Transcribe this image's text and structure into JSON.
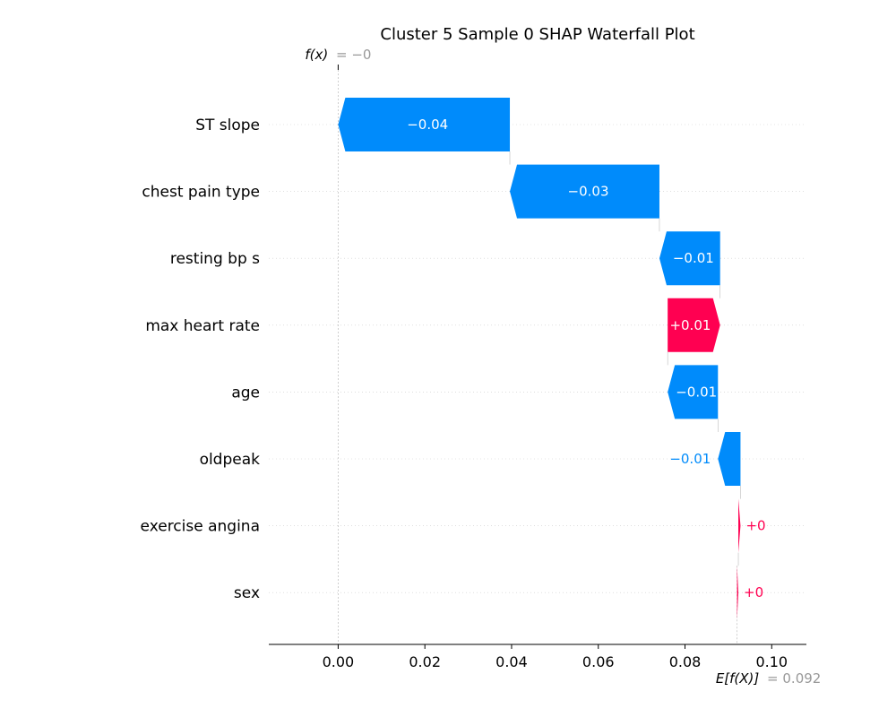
{
  "chart_data": {
    "type": "waterfall",
    "title": "Cluster 5 Sample 0 SHAP Waterfall Plot",
    "fx_label": "f(x)",
    "fx_value": "= −0",
    "base_label": "E[f(X)]",
    "base_value_text": "= 0.092",
    "base_value": 0.092,
    "final_value": 0.0,
    "xlim": [
      -0.016,
      0.108
    ],
    "xticks": [
      0.0,
      0.02,
      0.04,
      0.06,
      0.08,
      0.1
    ],
    "xtick_labels": [
      "0.00",
      "0.02",
      "0.04",
      "0.06",
      "0.08",
      "0.10"
    ],
    "features": [
      {
        "name": "ST slope",
        "start": 0.0396,
        "end": 0.0,
        "label": "−0.04"
      },
      {
        "name": "chest pain type",
        "start": 0.0741,
        "end": 0.0396,
        "label": "−0.03"
      },
      {
        "name": "resting bp s",
        "start": 0.0881,
        "end": 0.0741,
        "label": "−0.01"
      },
      {
        "name": "max heart rate",
        "start": 0.076,
        "end": 0.0881,
        "label": "+0.01"
      },
      {
        "name": "age",
        "start": 0.0876,
        "end": 0.076,
        "label": "−0.01"
      },
      {
        "name": "oldpeak",
        "start": 0.0928,
        "end": 0.0876,
        "label": "−0.01"
      },
      {
        "name": "exercise angina",
        "start": 0.0923,
        "end": 0.0928,
        "label": "+0"
      },
      {
        "name": "sex",
        "start": 0.092,
        "end": 0.0923,
        "label": "+0"
      }
    ],
    "colors": {
      "negative": "#008bfb",
      "positive": "#ff0051",
      "annotation": "#999999",
      "grid": "#cccccc"
    }
  }
}
